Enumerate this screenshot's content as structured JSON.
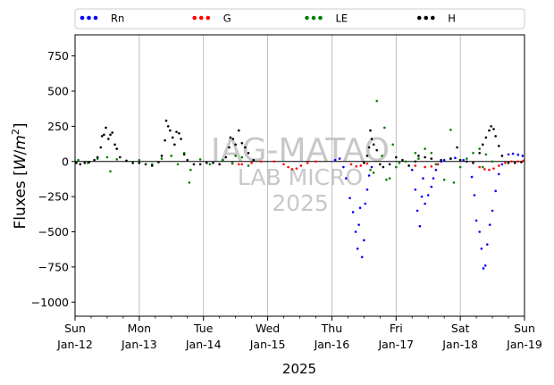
{
  "chart_data": {
    "type": "scatter",
    "title": "",
    "xlabel": "2025",
    "ylabel": "Fluxes [W/m²]",
    "ylabel_parts": {
      "text": "Fluxes ",
      "open": "[",
      "unit_W": "W",
      "unit_sep": "/",
      "unit_m": "m",
      "unit_exp": "2",
      "close": "]"
    },
    "xlim": [
      0,
      7
    ],
    "ylim": [
      -1100,
      900
    ],
    "y_ticks": [
      750,
      500,
      250,
      0,
      -250,
      -500,
      -750,
      -1000
    ],
    "y_tick_labels": [
      "750",
      "500",
      "250",
      "0",
      "−250",
      "−500",
      "−750",
      "−1000"
    ],
    "x_ticks": [
      0,
      1,
      2,
      3,
      4,
      5,
      6,
      7
    ],
    "x_tick_labels": [
      {
        "day": "Sun",
        "date": "Jan-12"
      },
      {
        "day": "Mon",
        "date": "Jan-13"
      },
      {
        "day": "Tue",
        "date": "Jan-14"
      },
      {
        "day": "Wed",
        "date": "Jan-15"
      },
      {
        "day": "Thu",
        "date": "Jan-16"
      },
      {
        "day": "Fri",
        "date": "Jan-17"
      },
      {
        "day": "Sat",
        "date": "Jan-18"
      },
      {
        "day": "Sun",
        "date": "Jan-19"
      }
    ],
    "grid": "vertical",
    "legend_placement": "top, outside plot, one row",
    "watermark": {
      "line1": "IAG-MATAO",
      "line2": "LAB MICRO",
      "line3": "2025"
    },
    "series": [
      {
        "name": "Rn",
        "color": "#0000ff",
        "marker": "dot",
        "points": [
          [
            4.05,
            10
          ],
          [
            4.12,
            20
          ],
          [
            4.18,
            -40
          ],
          [
            4.22,
            -120
          ],
          [
            4.28,
            -260
          ],
          [
            4.33,
            -360
          ],
          [
            4.37,
            -500
          ],
          [
            4.4,
            -620
          ],
          [
            4.42,
            -450
          ],
          [
            4.44,
            -330
          ],
          [
            4.47,
            -680
          ],
          [
            4.5,
            -560
          ],
          [
            4.52,
            -300
          ],
          [
            4.55,
            -200
          ],
          [
            4.58,
            -100
          ],
          [
            4.62,
            -40
          ],
          [
            5.25,
            -60
          ],
          [
            5.3,
            -200
          ],
          [
            5.33,
            -350
          ],
          [
            5.37,
            -460
          ],
          [
            5.4,
            -250
          ],
          [
            5.42,
            -120
          ],
          [
            5.45,
            -300
          ],
          [
            5.5,
            -240
          ],
          [
            5.55,
            -180
          ],
          [
            5.58,
            -120
          ],
          [
            5.62,
            -60
          ],
          [
            5.65,
            -20
          ],
          [
            5.7,
            0
          ],
          [
            5.75,
            10
          ],
          [
            5.85,
            20
          ],
          [
            5.92,
            25
          ],
          [
            6.05,
            10
          ],
          [
            6.18,
            -110
          ],
          [
            6.22,
            -240
          ],
          [
            6.25,
            -420
          ],
          [
            6.3,
            -500
          ],
          [
            6.33,
            -620
          ],
          [
            6.36,
            -760
          ],
          [
            6.39,
            -740
          ],
          [
            6.42,
            -590
          ],
          [
            6.46,
            -450
          ],
          [
            6.5,
            -350
          ],
          [
            6.55,
            -210
          ],
          [
            6.6,
            -90
          ],
          [
            6.65,
            -20
          ],
          [
            6.75,
            50
          ],
          [
            6.82,
            55
          ],
          [
            6.9,
            48
          ],
          [
            6.97,
            40
          ]
        ]
      },
      {
        "name": "G",
        "color": "#ff0000",
        "marker": "dot",
        "points": [
          [
            2.45,
            -15
          ],
          [
            2.55,
            -20
          ],
          [
            2.6,
            -20
          ],
          [
            2.75,
            -10
          ],
          [
            2.9,
            0
          ],
          [
            3.1,
            0
          ],
          [
            3.25,
            -20
          ],
          [
            3.32,
            -40
          ],
          [
            3.38,
            -55
          ],
          [
            3.45,
            -50
          ],
          [
            3.52,
            -30
          ],
          [
            3.62,
            -10
          ],
          [
            3.75,
            0
          ],
          [
            4.3,
            -20
          ],
          [
            4.38,
            -35
          ],
          [
            4.45,
            -30
          ],
          [
            4.55,
            -15
          ],
          [
            5.3,
            -30
          ],
          [
            5.45,
            -40
          ],
          [
            5.55,
            -35
          ],
          [
            5.65,
            -20
          ],
          [
            6.3,
            -40
          ],
          [
            6.38,
            -55
          ],
          [
            6.45,
            -60
          ],
          [
            6.52,
            -50
          ],
          [
            6.6,
            -30
          ],
          [
            6.7,
            -10
          ],
          [
            6.8,
            0
          ],
          [
            6.9,
            0
          ],
          [
            6.98,
            5
          ]
        ]
      },
      {
        "name": "LE",
        "color": "#008000",
        "marker": "dot",
        "points": [
          [
            0.05,
            10
          ],
          [
            0.2,
            -10
          ],
          [
            0.35,
            20
          ],
          [
            0.5,
            30
          ],
          [
            0.55,
            -70
          ],
          [
            0.65,
            15
          ],
          [
            0.8,
            5
          ],
          [
            1.0,
            10
          ],
          [
            1.2,
            -20
          ],
          [
            1.35,
            20
          ],
          [
            1.5,
            40
          ],
          [
            1.6,
            -20
          ],
          [
            1.7,
            60
          ],
          [
            1.8,
            -60
          ],
          [
            1.78,
            -150
          ],
          [
            1.95,
            15
          ],
          [
            2.1,
            -20
          ],
          [
            2.3,
            10
          ],
          [
            2.45,
            -10
          ],
          [
            2.5,
            40
          ],
          [
            2.6,
            30
          ],
          [
            2.7,
            -30
          ],
          [
            4.6,
            -60
          ],
          [
            4.65,
            -80
          ],
          [
            4.7,
            430
          ],
          [
            4.78,
            40
          ],
          [
            4.82,
            240
          ],
          [
            4.85,
            -130
          ],
          [
            4.9,
            -120
          ],
          [
            4.95,
            120
          ],
          [
            5.0,
            -40
          ],
          [
            5.05,
            -10
          ],
          [
            5.15,
            0
          ],
          [
            5.3,
            60
          ],
          [
            5.35,
            20
          ],
          [
            5.45,
            90
          ],
          [
            5.55,
            60
          ],
          [
            5.62,
            -20
          ],
          [
            5.75,
            -130
          ],
          [
            5.85,
            225
          ],
          [
            5.9,
            -150
          ],
          [
            6.0,
            -40
          ],
          [
            6.1,
            20
          ],
          [
            6.2,
            60
          ],
          [
            6.3,
            90
          ],
          [
            6.35,
            -40
          ],
          [
            6.4,
            50
          ],
          [
            6.5,
            0
          ]
        ]
      },
      {
        "name": "H",
        "color": "#000000",
        "marker": "dot",
        "points": [
          [
            0.02,
            -10
          ],
          [
            0.08,
            -20
          ],
          [
            0.15,
            -10
          ],
          [
            0.22,
            -5
          ],
          [
            0.3,
            10
          ],
          [
            0.35,
            30
          ],
          [
            0.4,
            100
          ],
          [
            0.42,
            180
          ],
          [
            0.45,
            190
          ],
          [
            0.48,
            240
          ],
          [
            0.52,
            160
          ],
          [
            0.55,
            190
          ],
          [
            0.58,
            205
          ],
          [
            0.62,
            120
          ],
          [
            0.65,
            90
          ],
          [
            0.7,
            30
          ],
          [
            0.8,
            5
          ],
          [
            0.9,
            -10
          ],
          [
            1.0,
            -10
          ],
          [
            1.1,
            -20
          ],
          [
            1.2,
            -30
          ],
          [
            1.3,
            -5
          ],
          [
            1.35,
            40
          ],
          [
            1.4,
            150
          ],
          [
            1.42,
            290
          ],
          [
            1.45,
            250
          ],
          [
            1.48,
            220
          ],
          [
            1.52,
            170
          ],
          [
            1.55,
            120
          ],
          [
            1.58,
            210
          ],
          [
            1.62,
            200
          ],
          [
            1.65,
            160
          ],
          [
            1.7,
            50
          ],
          [
            1.75,
            10
          ],
          [
            1.85,
            -20
          ],
          [
            1.95,
            -20
          ],
          [
            2.05,
            -10
          ],
          [
            2.15,
            -10
          ],
          [
            2.25,
            -20
          ],
          [
            2.35,
            30
          ],
          [
            2.4,
            100
          ],
          [
            2.42,
            170
          ],
          [
            2.46,
            160
          ],
          [
            2.5,
            120
          ],
          [
            2.55,
            220
          ],
          [
            2.6,
            130
          ],
          [
            2.65,
            100
          ],
          [
            2.7,
            60
          ],
          [
            2.78,
            10
          ],
          [
            4.5,
            -10
          ],
          [
            4.55,
            40
          ],
          [
            4.58,
            100
          ],
          [
            4.6,
            220
          ],
          [
            4.62,
            160
          ],
          [
            4.65,
            120
          ],
          [
            4.7,
            80
          ],
          [
            4.75,
            -20
          ],
          [
            4.8,
            -40
          ],
          [
            4.9,
            -20
          ],
          [
            5.0,
            30
          ],
          [
            5.1,
            10
          ],
          [
            5.2,
            -30
          ],
          [
            5.3,
            0
          ],
          [
            5.35,
            40
          ],
          [
            5.45,
            30
          ],
          [
            5.55,
            20
          ],
          [
            5.7,
            10
          ],
          [
            5.85,
            20
          ],
          [
            5.95,
            100
          ],
          [
            6.0,
            10
          ],
          [
            6.1,
            0
          ],
          [
            6.2,
            -10
          ],
          [
            6.3,
            60
          ],
          [
            6.35,
            120
          ],
          [
            6.4,
            170
          ],
          [
            6.45,
            220
          ],
          [
            6.48,
            250
          ],
          [
            6.52,
            230
          ],
          [
            6.55,
            180
          ],
          [
            6.6,
            110
          ],
          [
            6.65,
            40
          ],
          [
            6.75,
            -10
          ],
          [
            6.85,
            -10
          ],
          [
            6.95,
            -5
          ]
        ]
      }
    ]
  }
}
